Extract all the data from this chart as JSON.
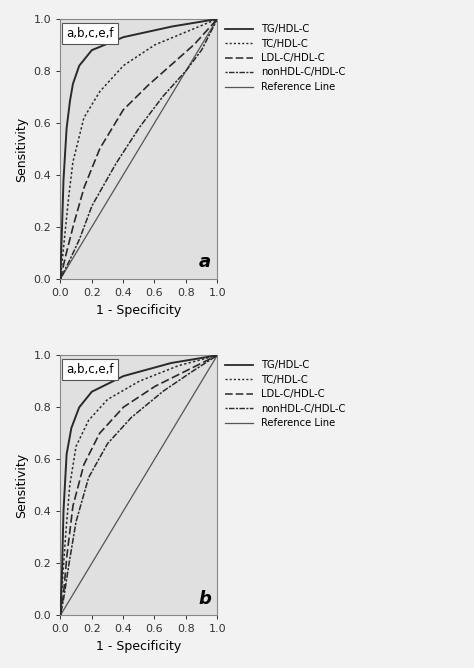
{
  "panel_annotation": "a,b,c,e,f",
  "xlabel": "1 - Specificity",
  "ylabel": "Sensitivity",
  "xticks": [
    0.0,
    0.2,
    0.4,
    0.6,
    0.8,
    1.0
  ],
  "yticks": [
    0.0,
    0.2,
    0.4,
    0.6,
    0.8,
    1.0
  ],
  "legend_labels": [
    "TG/HDL-C",
    "TC/HDL-C",
    "LDL-C/HDL-C",
    "nonHDL-C/HDL-C",
    "Reference Line"
  ],
  "panel_labels": [
    "a",
    "b"
  ],
  "axes_facecolor": "#e0e0e0",
  "fig_facecolor": "#f2f2f2",
  "line_color": "#2a2a2a",
  "ref_color": "#555555",
  "font_size": 8,
  "label_font_size": 9,
  "tick_font_size": 8,
  "annot_font_size": 8.5,
  "panel_label_font_size": 13
}
